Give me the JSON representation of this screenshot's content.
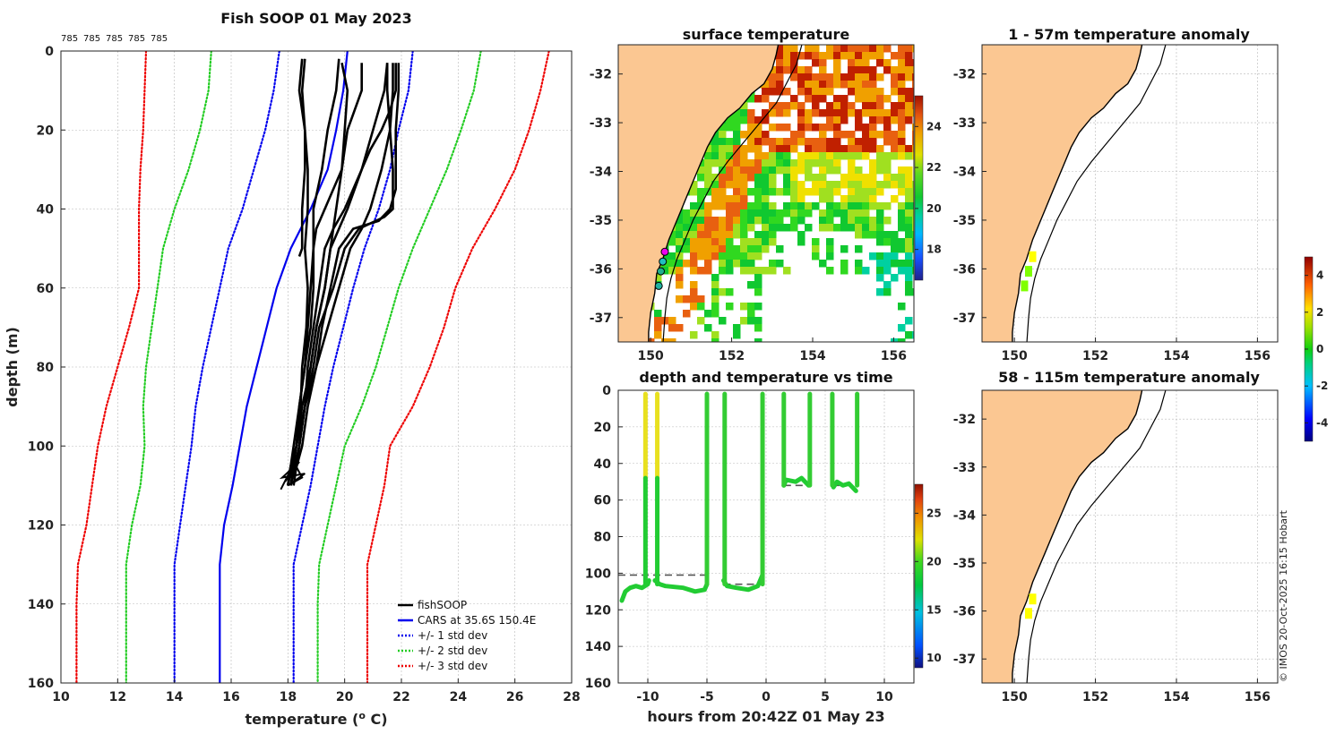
{
  "chart_data": [
    {
      "type": "line",
      "title": "Fish SOOP 01 May 2023",
      "top_labels": [
        "785",
        "785",
        "785",
        "785",
        "785"
      ],
      "xlabel": "temperature (o C)",
      "xlabel_main": "temperature (",
      "xlabel_sup": "o",
      "xlabel_end": " C)",
      "ylabel": "depth (m)",
      "xlim": [
        10,
        28
      ],
      "ylim": [
        160,
        0
      ],
      "xticks": [
        10,
        12,
        14,
        16,
        18,
        20,
        22,
        24,
        26,
        28
      ],
      "yticks": [
        0,
        20,
        40,
        60,
        80,
        100,
        120,
        140,
        160
      ],
      "grid": true,
      "legend_position": "bottom-right",
      "legend": [
        "fishSOOP",
        "CARS at 35.6S 150.4E",
        "+/- 1 std dev",
        "+/- 2 std dev",
        "+/- 3 std dev"
      ],
      "depth": [
        0,
        10,
        20,
        30,
        40,
        50,
        60,
        70,
        80,
        90,
        100,
        110,
        120,
        130,
        140,
        160
      ],
      "series": [
        {
          "name": "CARS at 35.6S 150.4E",
          "color": "#0000ee",
          "style": "solid",
          "values": [
            20.1,
            19.95,
            19.7,
            19.4,
            18.8,
            18.1,
            17.6,
            17.25,
            16.9,
            16.55,
            16.3,
            16.05,
            15.75,
            15.6,
            15.6,
            15.6
          ]
        },
        {
          "name": "+1 std dev",
          "color": "#0000ee",
          "style": "dotted",
          "values": [
            22.4,
            22.25,
            21.9,
            21.6,
            21.2,
            20.7,
            20.3,
            19.95,
            19.6,
            19.3,
            19.05,
            18.8,
            18.5,
            18.2,
            18.2,
            18.2
          ]
        },
        {
          "name": "-1 std dev",
          "color": "#0000ee",
          "style": "dotted",
          "values": [
            17.7,
            17.5,
            17.2,
            16.8,
            16.4,
            15.9,
            15.6,
            15.3,
            15.0,
            14.75,
            14.6,
            14.4,
            14.2,
            14.0,
            14.0,
            14.0
          ]
        },
        {
          "name": "+2 std dev",
          "color": "#22cc22",
          "style": "dotted",
          "values": [
            24.8,
            24.55,
            24.1,
            23.6,
            23.0,
            22.4,
            21.9,
            21.5,
            21.1,
            20.6,
            20.0,
            19.7,
            19.4,
            19.1,
            19.05,
            19.05
          ]
        },
        {
          "name": "-2 std dev",
          "color": "#22cc22",
          "style": "dotted",
          "values": [
            15.3,
            15.2,
            14.9,
            14.5,
            14.0,
            13.6,
            13.4,
            13.2,
            13.0,
            12.9,
            12.95,
            12.8,
            12.5,
            12.3,
            12.3,
            12.3
          ]
        },
        {
          "name": "+3 std dev",
          "color": "#ee0000",
          "style": "dotted",
          "values": [
            27.2,
            26.9,
            26.5,
            26.0,
            25.3,
            24.5,
            23.9,
            23.5,
            23.0,
            22.4,
            21.6,
            21.4,
            21.1,
            20.8,
            20.8,
            20.8
          ]
        },
        {
          "name": "-3 std dev",
          "color": "#ee0000",
          "style": "dotted",
          "values": [
            13.0,
            12.95,
            12.9,
            12.8,
            12.75,
            12.75,
            12.75,
            12.4,
            12.0,
            11.6,
            11.3,
            11.1,
            10.9,
            10.6,
            10.55,
            10.55
          ]
        }
      ],
      "profiles": [
        {
          "name": "cast1",
          "depth": [
            2,
            10,
            20,
            30,
            40,
            50,
            60,
            70,
            80,
            90,
            100,
            105,
            110
          ],
          "values": [
            18.6,
            18.5,
            18.6,
            18.7,
            18.7,
            18.6,
            18.7,
            18.65,
            18.5,
            18.45,
            18.3,
            18.1,
            18.0
          ]
        },
        {
          "name": "cast2",
          "depth": [
            2,
            10,
            20,
            30,
            40,
            50,
            52
          ],
          "values": [
            18.5,
            18.4,
            18.6,
            18.6,
            18.5,
            18.5,
            18.4
          ]
        },
        {
          "name": "cast3",
          "depth": [
            2,
            10,
            20,
            30,
            40,
            50,
            60,
            70,
            80,
            90,
            100,
            110
          ],
          "values": [
            19.8,
            19.7,
            19.4,
            19.2,
            18.9,
            18.9,
            18.9,
            18.8,
            18.6,
            18.4,
            18.2,
            18.0
          ]
        },
        {
          "name": "cast4",
          "depth": [
            3,
            10,
            20,
            30,
            40,
            50,
            60,
            70,
            80,
            90,
            100,
            108
          ],
          "values": [
            19.9,
            20.1,
            20.0,
            19.9,
            19.7,
            19.5,
            19.3,
            19.0,
            18.8,
            18.5,
            18.3,
            18.0
          ]
        },
        {
          "name": "cast5",
          "depth": [
            3,
            10,
            20,
            30,
            35,
            40,
            45,
            50,
            60,
            70,
            80,
            90,
            100,
            110
          ],
          "values": [
            20.6,
            20.6,
            20.1,
            19.9,
            19.6,
            19.3,
            19.0,
            18.9,
            18.8,
            18.7,
            18.6,
            18.4,
            18.3,
            18.1
          ]
        },
        {
          "name": "cast6",
          "depth": [
            3,
            10,
            20,
            30,
            40,
            45,
            50,
            60,
            70,
            80,
            90,
            100,
            110
          ],
          "values": [
            21.5,
            21.4,
            21.0,
            20.6,
            20.1,
            19.8,
            19.5,
            19.3,
            19.0,
            18.8,
            18.6,
            18.4,
            18.1
          ]
        },
        {
          "name": "cast7",
          "depth": [
            3,
            10,
            15,
            20,
            25,
            30,
            35,
            40,
            45,
            50,
            60,
            70,
            80,
            90,
            100,
            108
          ],
          "values": [
            21.8,
            21.8,
            21.6,
            21.3,
            20.9,
            20.6,
            20.3,
            20.0,
            19.6,
            19.3,
            19.1,
            18.9,
            18.7,
            18.6,
            18.4,
            18.2
          ]
        },
        {
          "name": "cast8",
          "depth": [
            3,
            10,
            20,
            30,
            40,
            45,
            50,
            60,
            70,
            80,
            90,
            100,
            110
          ],
          "values": [
            21.7,
            21.7,
            21.6,
            21.3,
            20.9,
            20.6,
            20.2,
            19.8,
            19.4,
            19.0,
            18.6,
            18.4,
            18.2
          ]
        },
        {
          "name": "cast9",
          "depth": [
            3,
            10,
            20,
            30,
            35,
            40,
            43,
            45,
            50,
            60,
            70,
            80,
            90,
            100,
            108
          ],
          "values": [
            21.9,
            21.9,
            21.8,
            21.8,
            21.8,
            21.6,
            21.2,
            20.3,
            19.8,
            19.5,
            19.2,
            19.0,
            18.7,
            18.5,
            18.2
          ]
        },
        {
          "name": "cast10",
          "depth": [
            3,
            10,
            20,
            30,
            40,
            42,
            45,
            50,
            60,
            70,
            80,
            90,
            100,
            110
          ],
          "values": [
            21.5,
            21.5,
            21.6,
            21.7,
            21.7,
            21.4,
            20.5,
            20.0,
            19.6,
            19.1,
            18.9,
            18.6,
            18.3,
            18.0
          ]
        }
      ]
    },
    {
      "type": "heatmap",
      "title": "surface temperature",
      "xticks": [
        150,
        152,
        154,
        156
      ],
      "yticks": [
        -32,
        -33,
        -34,
        -35,
        -36,
        -37
      ],
      "xlim": [
        149.2,
        156.5
      ],
      "ylim": [
        -37.5,
        -31.4
      ],
      "colorbar": {
        "ticks": [
          18,
          20,
          22,
          24
        ],
        "range": [
          16.5,
          25.5
        ]
      }
    },
    {
      "type": "scatter",
      "title": "depth and temperature vs time",
      "xlabel": "hours from 20:42Z 01 May 23",
      "xticks": [
        -10,
        -5,
        0,
        5,
        10
      ],
      "yticks": [
        0,
        20,
        40,
        60,
        80,
        100,
        120,
        140,
        160
      ],
      "xlim": [
        -12.5,
        12.5
      ],
      "ylim": [
        160,
        0
      ],
      "colorbar": {
        "ticks": [
          10,
          15,
          20,
          25
        ],
        "range": [
          9,
          28
        ]
      },
      "dive_segments": [
        {
          "t": [
            -12.2,
            -11.9,
            -11.5,
            -11.0,
            -10.5,
            -10.0,
            -9.9
          ],
          "d": [
            115,
            110,
            108,
            107,
            108,
            106,
            104
          ]
        },
        {
          "t": [
            -9.4,
            -9.0,
            -8.5,
            -7.0,
            -6.0,
            -5.2,
            -5.0
          ],
          "d": [
            104,
            106,
            107,
            108,
            110,
            109,
            106
          ]
        },
        {
          "t": [
            -3.6,
            -3.3,
            -2.5,
            -1.5,
            -0.7,
            -0.3
          ],
          "d": [
            104,
            107,
            108,
            109,
            107,
            101
          ]
        },
        {
          "t": [
            1.5,
            1.7,
            2.5,
            3.0,
            3.6
          ],
          "d": [
            52,
            49,
            50,
            48,
            52
          ]
        },
        {
          "t": [
            5.7,
            6.0,
            6.5,
            7.0,
            7.6
          ],
          "d": [
            53,
            50,
            52,
            51,
            55
          ]
        }
      ],
      "ascents": [
        -10.2,
        -9.2,
        -5.0,
        -3.5,
        -0.3,
        1.5,
        3.7,
        5.6,
        7.7
      ],
      "mean_depth_lines": [
        {
          "t0": -12.5,
          "t1": -5.0,
          "d": 101
        },
        {
          "t0": -3.6,
          "t1": -0.3,
          "d": 106
        },
        {
          "t0": 1.5,
          "t1": 3.7,
          "d": 52
        },
        {
          "t0": 5.6,
          "t1": 7.7,
          "d": 52
        }
      ]
    },
    {
      "type": "heatmap",
      "title": "1 - 57m temperature anomaly",
      "xticks": [
        150,
        152,
        154,
        156
      ],
      "yticks": [
        -32,
        -33,
        -34,
        -35,
        -36,
        -37
      ],
      "xlim": [
        149.2,
        156.5
      ],
      "ylim": [
        -37.5,
        -31.4
      ],
      "points": [
        {
          "lon": 150.45,
          "lat": -35.75,
          "value": 1.4
        },
        {
          "lon": 150.35,
          "lat": -36.05,
          "value": 0.8
        },
        {
          "lon": 150.25,
          "lat": -36.35,
          "value": 0.2
        }
      ]
    },
    {
      "type": "heatmap",
      "title": "58 - 115m temperature anomaly",
      "xticks": [
        150,
        152,
        154,
        156
      ],
      "yticks": [
        -32,
        -33,
        -34,
        -35,
        -36,
        -37
      ],
      "xlim": [
        149.2,
        156.5
      ],
      "ylim": [
        -37.5,
        -31.4
      ],
      "colorbar": {
        "ticks": [
          -4,
          -2,
          0,
          2,
          4
        ],
        "range": [
          -5,
          5
        ]
      },
      "points": [
        {
          "lon": 150.45,
          "lat": -35.75,
          "value": 1.8
        },
        {
          "lon": 150.35,
          "lat": -36.05,
          "value": 1.6
        }
      ]
    }
  ],
  "credit": "© IMOS 20-Oct-2025 16:15 Hobart",
  "coastline": [
    [
      153.2,
      -31.2
    ],
    [
      153.1,
      -31.6
    ],
    [
      153.0,
      -31.9
    ],
    [
      152.8,
      -32.2
    ],
    [
      152.5,
      -32.4
    ],
    [
      152.2,
      -32.7
    ],
    [
      151.9,
      -32.9
    ],
    [
      151.6,
      -33.2
    ],
    [
      151.4,
      -33.5
    ],
    [
      151.2,
      -33.9
    ],
    [
      151.05,
      -34.2
    ],
    [
      150.9,
      -34.5
    ],
    [
      150.75,
      -34.8
    ],
    [
      150.6,
      -35.1
    ],
    [
      150.45,
      -35.4
    ],
    [
      150.3,
      -35.8
    ],
    [
      150.15,
      -36.1
    ],
    [
      150.1,
      -36.5
    ],
    [
      150.0,
      -36.9
    ],
    [
      149.95,
      -37.3
    ],
    [
      149.95,
      -37.6
    ]
  ],
  "shelf_contour": [
    [
      153.8,
      -31.2
    ],
    [
      153.6,
      -31.8
    ],
    [
      153.35,
      -32.2
    ],
    [
      153.1,
      -32.6
    ],
    [
      152.7,
      -33.0
    ],
    [
      152.3,
      -33.4
    ],
    [
      151.9,
      -33.8
    ],
    [
      151.55,
      -34.2
    ],
    [
      151.3,
      -34.6
    ],
    [
      151.05,
      -35.0
    ],
    [
      150.85,
      -35.4
    ],
    [
      150.65,
      -35.8
    ],
    [
      150.5,
      -36.2
    ],
    [
      150.4,
      -36.6
    ],
    [
      150.35,
      -37.0
    ],
    [
      150.3,
      -37.6
    ]
  ],
  "sst_colormap": [
    "#6a00a8",
    "#1a1aff",
    "#00b0ff",
    "#00d0a0",
    "#10c830",
    "#30d820",
    "#a0e020",
    "#f0e000",
    "#f0a000",
    "#e86010",
    "#c02000",
    "#8a0010"
  ],
  "cmap_jet": [
    "#00007f",
    "#0000ff",
    "#007fff",
    "#00ffff",
    "#11dd11",
    "#7fff00",
    "#ffff00",
    "#ff7f00",
    "#ff0000",
    "#7f0000"
  ],
  "land_color": "#fbc792"
}
